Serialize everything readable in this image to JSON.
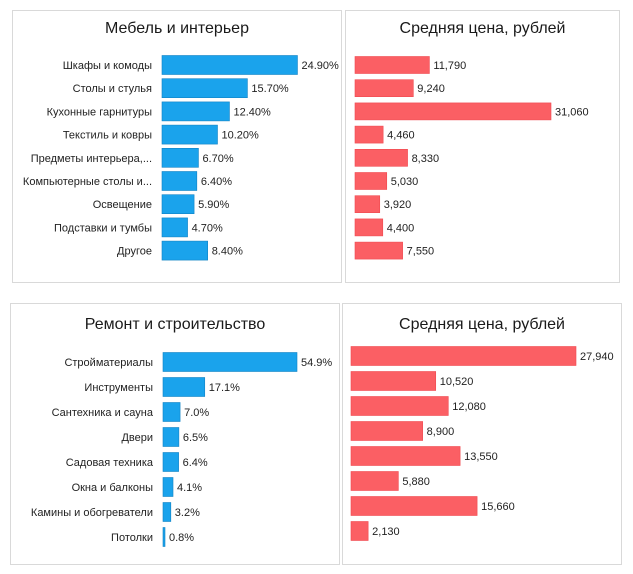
{
  "chart_data": [
    {
      "type": "bar",
      "orientation": "horizontal",
      "title": "Мебель и интерьер",
      "categories": [
        "Шкафы и комоды",
        "Столы и стулья",
        "Кухонные гарнитуры",
        "Текстиль и ковры",
        "Предметы интерьера,...",
        "Компьютерные столы и...",
        "Освещение",
        "Подставки и тумбы",
        "Другое"
      ],
      "values": [
        24.9,
        15.7,
        12.4,
        10.2,
        6.7,
        6.4,
        5.9,
        4.7,
        8.4
      ],
      "data_labels": [
        "24.90%",
        "15.70%",
        "12.40%",
        "10.20%",
        "6.70%",
        "6.40%",
        "5.90%",
        "4.70%",
        "8.40%"
      ],
      "color": "#1aa3ec",
      "xlim": [
        0,
        25
      ]
    },
    {
      "type": "bar",
      "orientation": "horizontal",
      "title": "Средняя цена, рублей",
      "categories": [
        "Шкафы и комоды",
        "Столы и стулья",
        "Кухонные гарнитуры",
        "Текстиль и ковры",
        "Предметы интерьера,...",
        "Компьютерные столы и...",
        "Освещение",
        "Подставки и тумбы",
        "Другое"
      ],
      "values": [
        11790,
        9240,
        31060,
        4460,
        8330,
        5030,
        3920,
        4400,
        7550
      ],
      "data_labels": [
        "11,790",
        "9,240",
        "31,060",
        "4,460",
        "8,330",
        "5,030",
        "3,920",
        "4,400",
        "7,550"
      ],
      "color": "#fb5f64",
      "xlim": [
        0,
        31060
      ]
    },
    {
      "type": "bar",
      "orientation": "horizontal",
      "title": "Ремонт и строительство",
      "categories": [
        "Стройматериалы",
        "Инструменты",
        "Сантехника и сауна",
        "Двери",
        "Садовая техника",
        "Окна и балконы",
        "Камины и обогреватели",
        "Потолки"
      ],
      "values": [
        54.9,
        17.1,
        7.0,
        6.5,
        6.4,
        4.1,
        3.2,
        0.8
      ],
      "data_labels": [
        "54.9%",
        "17.1%",
        "7.0%",
        "6.5%",
        "6.4%",
        "4.1%",
        "3.2%",
        "0.8%"
      ],
      "color": "#1aa3ec",
      "xlim": [
        0,
        54.9
      ]
    },
    {
      "type": "bar",
      "orientation": "horizontal",
      "title": "Средняя цена, рублей",
      "categories": [
        "Стройматериалы",
        "Инструменты",
        "Сантехника и сауна",
        "Двери",
        "Садовая техника",
        "Окна и балконы",
        "Камины и обогреватели",
        "Потолки"
      ],
      "values": [
        27940,
        10520,
        12080,
        8900,
        13550,
        5880,
        15660,
        2130
      ],
      "data_labels": [
        "27,940",
        "10,520",
        "12,080",
        "8,900",
        "13,550",
        "5,880",
        "15,660",
        "2,130"
      ],
      "color": "#fb5f64",
      "xlim": [
        0,
        27940
      ]
    }
  ]
}
